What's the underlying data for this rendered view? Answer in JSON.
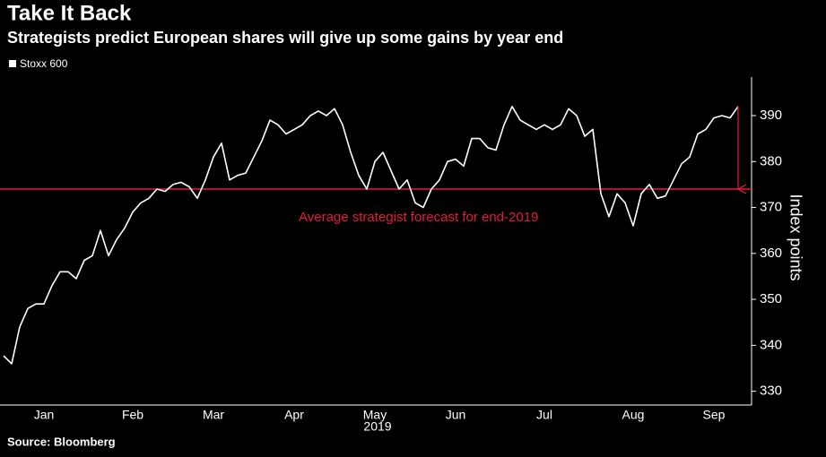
{
  "chart_data": {
    "type": "line",
    "title": "Take It Back",
    "subtitle": "Strategists predict European shares will give up some gains by year end",
    "source": "Source: Bloomberg",
    "x_label": "2019",
    "y_label": "Index points",
    "legend": "top-left",
    "y_axis_side": "right",
    "categories": [
      null,
      null,
      null,
      null,
      null,
      "Jan",
      null,
      null,
      null,
      null,
      null,
      null,
      null,
      null,
      null,
      null,
      "Feb",
      null,
      null,
      null,
      null,
      null,
      null,
      null,
      null,
      null,
      "Mar",
      null,
      null,
      null,
      null,
      null,
      null,
      null,
      null,
      null,
      "Apr",
      null,
      null,
      null,
      null,
      null,
      null,
      null,
      null,
      null,
      "May",
      null,
      null,
      null,
      null,
      null,
      null,
      null,
      null,
      null,
      "Jun",
      null,
      null,
      null,
      null,
      null,
      null,
      null,
      null,
      null,
      null,
      "Jul",
      null,
      null,
      null,
      null,
      null,
      null,
      null,
      null,
      null,
      null,
      "Aug",
      null,
      null,
      null,
      null,
      null,
      null,
      null,
      null,
      null,
      "Sep",
      null,
      null,
      null
    ],
    "series": [
      {
        "name": "Stoxx 600",
        "color": "#ffffff",
        "values": [
          337.7,
          336,
          344,
          348,
          349,
          349,
          353,
          356,
          356,
          354.5,
          358.5,
          359.5,
          365,
          359.5,
          363,
          365.5,
          369,
          371,
          372,
          374,
          373.5,
          375,
          375.5,
          374.5,
          372,
          376,
          381,
          384,
          376,
          377,
          377.5,
          381,
          384.5,
          389,
          388,
          386,
          387,
          388,
          390,
          391,
          390,
          391.5,
          388,
          382,
          377,
          374,
          380,
          382,
          378,
          374,
          376,
          371,
          370,
          374,
          376,
          380,
          380.5,
          379,
          385,
          385,
          383,
          382.5,
          388,
          392,
          389,
          388,
          387,
          388,
          387,
          388,
          391.5,
          390,
          385.5,
          387,
          373,
          368,
          373,
          371,
          366,
          373,
          375,
          372,
          372.5,
          376,
          379.5,
          381,
          386,
          387,
          389.5,
          390,
          389.5,
          392
        ]
      }
    ],
    "ylim": [
      327,
      398
    ],
    "yticks": [
      330,
      340,
      350,
      360,
      370,
      380,
      390
    ],
    "reference": {
      "value": 374,
      "label": "Average strategist forecast for end-2019",
      "color": "#e8173c"
    }
  }
}
